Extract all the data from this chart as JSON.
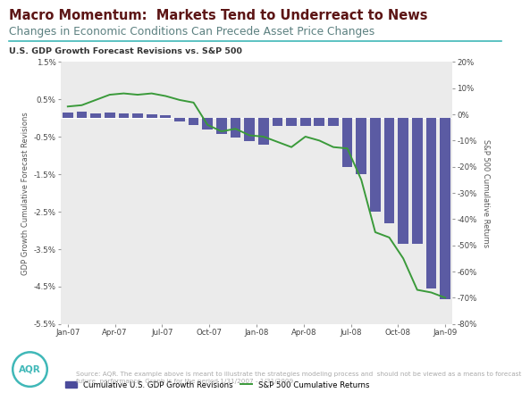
{
  "title1": "Macro Momentum:  Markets Tend to Underreact to News",
  "title2": "Changes in Economic Conditions Can Precede Asset Price Changes",
  "chart_subtitle": "U.S. GDP Growth Forecast Revisions vs. S&P 500",
  "bar_color": "#4B4B9B",
  "line_color": "#3A9A3A",
  "background_color": "#EBEBEB",
  "left_ylim": [
    -5.5,
    1.5
  ],
  "right_ylim": [
    -80,
    20
  ],
  "left_yticks": [
    -5.5,
    -4.5,
    -3.5,
    -2.5,
    -1.5,
    -0.5,
    0.5,
    1.5
  ],
  "right_yticks": [
    -80,
    -70,
    -60,
    -50,
    -40,
    -30,
    -20,
    -10,
    0,
    10,
    20
  ],
  "xtick_labels": [
    "Jan-07",
    "Apr-07",
    "Jul-07",
    "Oct-07",
    "Jan-08",
    "Apr-08",
    "Jul-08",
    "Oct-08",
    "Jan-09"
  ],
  "bar_values": [
    0.15,
    0.18,
    0.12,
    0.14,
    0.12,
    0.12,
    0.1,
    0.08,
    -0.1,
    -0.18,
    -0.3,
    -0.42,
    -0.52,
    -0.62,
    -0.72,
    -0.22,
    -0.22,
    -0.22,
    -0.22,
    -0.22,
    -1.3,
    -1.5,
    -2.5,
    -2.8,
    -3.35,
    -3.35,
    -4.55,
    -4.85
  ],
  "line_values": [
    3.0,
    3.5,
    5.5,
    7.5,
    8.0,
    7.5,
    8.0,
    7.0,
    5.5,
    4.5,
    -4.0,
    -6.5,
    -5.5,
    -8.0,
    -8.5,
    -10.5,
    -12.5,
    -8.5,
    -10.0,
    -12.5,
    -13.0,
    -25.0,
    -45.0,
    -47.0,
    -55.0,
    -67.0,
    -68.0,
    -70.0
  ],
  "source_text": "Source: AQR. The example above is meant to illustrate the strategies modeling process and  should not be viewed as a means to forecast\nfuture  performance. Graph is for the period 1/31/2007 - 1/31/2009.",
  "legend_label_bar": "Cumulative U.S. GDP Growth Revisions",
  "legend_label_line": "S&P 500 Cumulative Returns",
  "title1_color": "#5C1515",
  "title2_color": "#5C8080",
  "left_ylabel": "GDP Growth Cumulative Forecast Revisions",
  "right_ylabel": "S&P 500 Cumulative Returns",
  "separator_color": "#40B8B8",
  "aqr_color": "#40B8B8",
  "source_color": "#AAAAAA"
}
